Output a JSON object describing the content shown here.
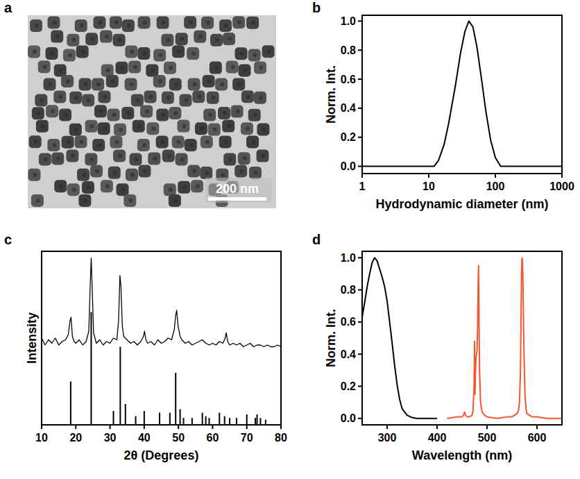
{
  "chart_data": [
    {
      "type": "image",
      "panel": "a",
      "annotations": [
        "200 nm"
      ]
    },
    {
      "type": "line",
      "panel": "b",
      "x_label": "Hydrodynamic diameter (nm)",
      "y_label": "Norm. Int.",
      "log": "x",
      "xlim": [
        1,
        1000
      ],
      "xticks": [
        1,
        10,
        100,
        1000
      ],
      "ylim": [
        -0.05,
        1.04
      ],
      "yticks": [
        {
          "value": 0,
          "label": "0.0"
        },
        0.2,
        0.4,
        0.6,
        0.8,
        {
          "value": 1,
          "label": "1.0"
        }
      ],
      "x": [
        1,
        12,
        14,
        17,
        20,
        25,
        30,
        35,
        40,
        46,
        53,
        62,
        72,
        85,
        100,
        120,
        1000
      ],
      "series": [
        {
          "color": "#000000",
          "values": [
            0,
            0,
            0.04,
            0.15,
            0.3,
            0.55,
            0.78,
            0.93,
            1.0,
            0.96,
            0.82,
            0.6,
            0.38,
            0.18,
            0.06,
            0,
            0
          ]
        }
      ]
    },
    {
      "type": "line",
      "panel": "c",
      "x_label": "2θ (Degrees)",
      "y_label": "Intensity",
      "tick_labels": "x",
      "xlim": [
        10,
        80
      ],
      "xticks": [
        10,
        20,
        30,
        40,
        50,
        60,
        70,
        80
      ],
      "ylim": [
        0,
        100
      ],
      "series": [
        {
          "type": "line",
          "color": "#000000",
          "x": [
            10,
            11,
            12,
            13,
            14,
            15,
            16,
            17,
            17.8,
            18.3,
            18.6,
            19,
            19.5,
            20,
            21,
            22,
            23,
            23.8,
            24.2,
            24.5,
            24.8,
            25.2,
            26,
            27,
            28,
            29,
            30,
            31,
            32,
            32.5,
            32.9,
            33.2,
            33.6,
            34,
            35,
            36,
            37,
            38,
            39,
            39.8,
            40.1,
            40.5,
            41,
            42,
            43,
            44,
            45,
            46,
            47,
            48,
            48.8,
            49.2,
            49.5,
            49.9,
            50.5,
            51,
            52,
            53,
            54,
            55,
            56,
            57,
            58,
            59,
            60,
            61,
            62,
            63,
            63.7,
            64,
            64.4,
            65,
            66,
            67,
            68,
            69,
            70,
            71,
            72,
            73,
            74,
            75,
            76,
            77,
            78,
            79,
            80
          ],
          "values": [
            50,
            46,
            49,
            47,
            50,
            46,
            48,
            49,
            52,
            60,
            62,
            51,
            48,
            47,
            49,
            46,
            48,
            54,
            80,
            96,
            78,
            53,
            47,
            49,
            46,
            48,
            47,
            50,
            49,
            60,
            86,
            80,
            57,
            51,
            49,
            47,
            48,
            46,
            48,
            51,
            54,
            49,
            47,
            48,
            46,
            49,
            47,
            48,
            50,
            49,
            55,
            63,
            66,
            57,
            51,
            49,
            47,
            48,
            46,
            47,
            48,
            49,
            47,
            46,
            47,
            46,
            48,
            47,
            50,
            53,
            48,
            46,
            47,
            46,
            47,
            45,
            46,
            47,
            45,
            46,
            46,
            45,
            46,
            45,
            45,
            46,
            45
          ]
        },
        {
          "type": "bar",
          "color": "#000000",
          "x": [
            18.5,
            24.5,
            31,
            33,
            34.5,
            37.5,
            40,
            44.5,
            47.5,
            49.2,
            50.5,
            51.5,
            54,
            57,
            58,
            59,
            62,
            63.5,
            65,
            67,
            70,
            72.5,
            73,
            74,
            75.5,
            80
          ],
          "values": [
            25,
            65,
            8,
            45,
            12,
            5,
            8,
            7,
            7,
            30,
            9,
            4,
            4,
            7,
            5,
            4,
            7,
            5,
            4,
            4,
            6,
            4,
            6,
            4,
            3,
            4
          ]
        }
      ]
    },
    {
      "type": "line",
      "panel": "d",
      "x_label": "Wavelength (nm)",
      "y_label": "Norm. Int.",
      "xlim": [
        250,
        650
      ],
      "xticks": [
        300,
        400,
        500,
        600
      ],
      "ylim": [
        -0.04,
        1.04
      ],
      "yticks": [
        {
          "value": 0,
          "label": "0.0"
        },
        0.2,
        0.4,
        0.6,
        0.8,
        {
          "value": 1,
          "label": "1.0"
        }
      ],
      "series": [
        {
          "color": "#000000",
          "x": [
            250,
            255,
            260,
            265,
            270,
            275,
            280,
            285,
            290,
            295,
            300,
            305,
            310,
            315,
            320,
            325,
            330,
            340,
            350,
            360,
            380,
            400
          ],
          "values": [
            0.63,
            0.72,
            0.82,
            0.9,
            0.97,
            1.0,
            0.98,
            0.93,
            0.88,
            0.82,
            0.73,
            0.6,
            0.47,
            0.33,
            0.21,
            0.12,
            0.06,
            0.02,
            0.005,
            0.0,
            0.0,
            0.0
          ]
        },
        {
          "color": "#f2572d",
          "x": [
            420,
            440,
            450,
            453,
            455,
            457,
            460,
            465,
            470,
            472,
            474,
            475,
            476,
            477,
            478,
            480,
            481,
            482,
            483,
            484,
            485,
            487,
            490,
            495,
            500,
            520,
            540,
            550,
            555,
            560,
            563,
            565,
            567,
            568,
            569,
            570,
            571,
            572,
            573,
            574,
            576,
            578,
            580,
            585,
            590,
            600,
            620,
            650
          ],
          "values": [
            0.0,
            0.01,
            0.01,
            0.02,
            0.04,
            0.02,
            0.01,
            0.01,
            0.02,
            0.05,
            0.2,
            0.48,
            0.15,
            0.3,
            0.38,
            0.42,
            0.55,
            0.8,
            0.95,
            0.6,
            0.3,
            0.1,
            0.04,
            0.02,
            0.01,
            0.0,
            0.01,
            0.01,
            0.02,
            0.03,
            0.05,
            0.1,
            0.3,
            0.6,
            0.9,
            1.0,
            0.98,
            0.85,
            0.6,
            0.4,
            0.15,
            0.06,
            0.03,
            0.02,
            0.01,
            0.01,
            0.0,
            0.0
          ]
        }
      ]
    }
  ]
}
